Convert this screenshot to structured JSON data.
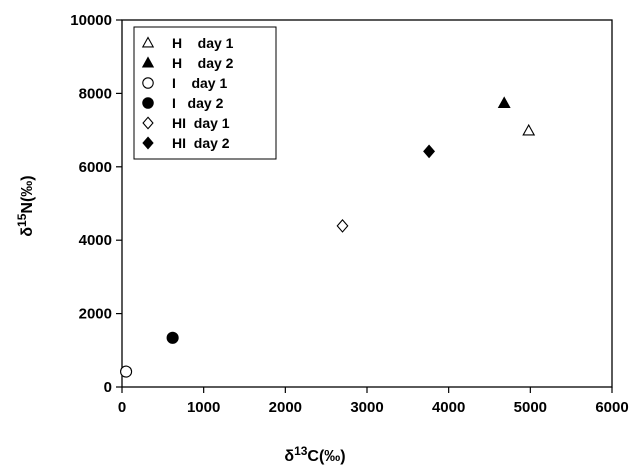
{
  "chart_data": {
    "type": "scatter",
    "xlabel": {
      "prefix": "δ",
      "sup": "13",
      "suffix": "C(‰)"
    },
    "ylabel": {
      "prefix": "δ",
      "sup": "15",
      "suffix": "N(‰)"
    },
    "xlim": [
      0,
      6000
    ],
    "ylim": [
      0,
      10000
    ],
    "xticks": [
      0,
      1000,
      2000,
      3000,
      4000,
      5000,
      6000
    ],
    "yticks": [
      0,
      2000,
      4000,
      6000,
      8000,
      10000
    ],
    "grid": false,
    "legend_position": "top-left",
    "series": [
      {
        "name": "H    day 1",
        "marker": "triangle",
        "filled": false,
        "points": [
          {
            "x": 4980,
            "y": 6980
          }
        ]
      },
      {
        "name": "H    day 2",
        "marker": "triangle",
        "filled": true,
        "points": [
          {
            "x": 4680,
            "y": 7730
          }
        ]
      },
      {
        "name": "I    day 1",
        "marker": "circle",
        "filled": false,
        "points": [
          {
            "x": 50,
            "y": 420
          }
        ]
      },
      {
        "name": "I   day 2",
        "marker": "circle",
        "filled": true,
        "points": [
          {
            "x": 620,
            "y": 1340
          }
        ]
      },
      {
        "name": "HI  day 1",
        "marker": "diamond",
        "filled": false,
        "points": [
          {
            "x": 2700,
            "y": 4390
          }
        ]
      },
      {
        "name": "HI  day 2",
        "marker": "diamond",
        "filled": true,
        "points": [
          {
            "x": 3760,
            "y": 6420
          }
        ]
      }
    ]
  }
}
